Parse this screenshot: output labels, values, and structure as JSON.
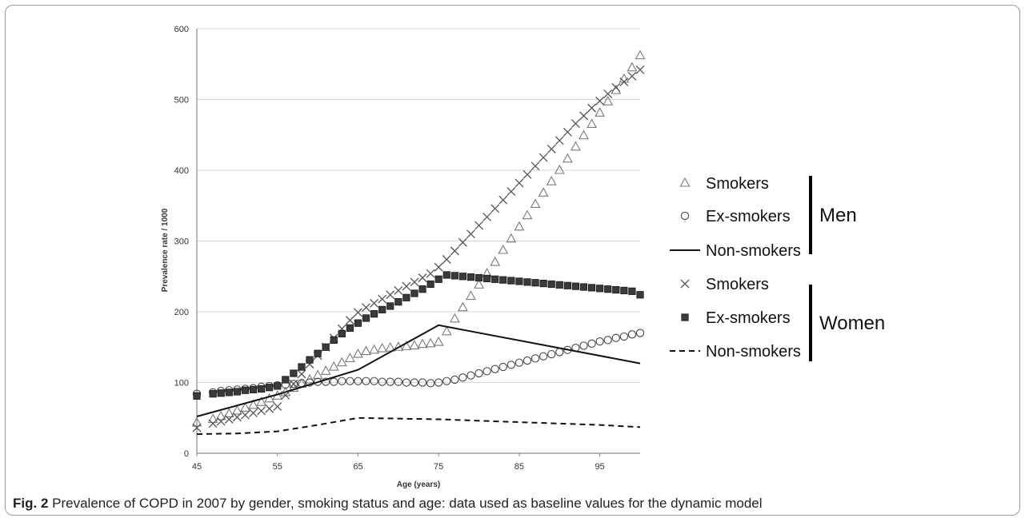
{
  "caption": {
    "label": "Fig. 2",
    "text": "Prevalence of COPD in 2007 by gender, smoking status and age: data used as baseline values for the dynamic model"
  },
  "chart_data": {
    "type": "scatter",
    "xlabel": "Age (years)",
    "ylabel": "Prevalence rate / 1000",
    "xlim": [
      45,
      100
    ],
    "ylim": [
      0,
      600
    ],
    "x_ticks": [
      45,
      55,
      65,
      75,
      85,
      95
    ],
    "y_ticks": [
      0,
      100,
      200,
      300,
      400,
      500,
      600
    ],
    "grid": "horizontal",
    "legend_position": "right",
    "legend_groups": [
      {
        "name": "Men",
        "entries": [
          "Smokers",
          "Ex-smokers",
          "Non-smokers"
        ]
      },
      {
        "name": "Women",
        "entries": [
          "Smokers",
          "Ex-smokers",
          "Non-smokers"
        ]
      }
    ],
    "series": [
      {
        "name": "Smokers",
        "group": "Men",
        "marker": "triangle",
        "color": "#7a7a7a",
        "points": [
          [
            45,
            43
          ],
          [
            47,
            48
          ],
          [
            48,
            52
          ],
          [
            49,
            56
          ],
          [
            50,
            60
          ],
          [
            51,
            64
          ],
          [
            52,
            68
          ],
          [
            53,
            72
          ],
          [
            54,
            77
          ],
          [
            55,
            81
          ],
          [
            56,
            86
          ],
          [
            57,
            92
          ],
          [
            58,
            98
          ],
          [
            59,
            104
          ],
          [
            60,
            110
          ],
          [
            61,
            116
          ],
          [
            62,
            122
          ],
          [
            63,
            128
          ],
          [
            64,
            134
          ],
          [
            65,
            140
          ],
          [
            66,
            144
          ],
          [
            67,
            146
          ],
          [
            68,
            148
          ],
          [
            69,
            149
          ],
          [
            70,
            150
          ],
          [
            71,
            151
          ],
          [
            72,
            152
          ],
          [
            73,
            154
          ],
          [
            74,
            155
          ],
          [
            75,
            157
          ],
          [
            76,
            172
          ],
          [
            77,
            190
          ],
          [
            78,
            206
          ],
          [
            79,
            222
          ],
          [
            80,
            238
          ],
          [
            81,
            254
          ],
          [
            82,
            270
          ],
          [
            83,
            287
          ],
          [
            84,
            303
          ],
          [
            85,
            320
          ],
          [
            86,
            336
          ],
          [
            87,
            352
          ],
          [
            88,
            368
          ],
          [
            89,
            384
          ],
          [
            90,
            400
          ],
          [
            91,
            416
          ],
          [
            92,
            433
          ],
          [
            93,
            449
          ],
          [
            94,
            465
          ],
          [
            95,
            481
          ],
          [
            96,
            497
          ],
          [
            97,
            513
          ],
          [
            98,
            529
          ],
          [
            99,
            545
          ],
          [
            100,
            562
          ]
        ]
      },
      {
        "name": "Ex-smokers",
        "group": "Men",
        "marker": "circle",
        "color": "#444444",
        "points": [
          [
            45,
            84
          ],
          [
            47,
            86
          ],
          [
            48,
            88
          ],
          [
            49,
            89
          ],
          [
            50,
            90
          ],
          [
            51,
            91
          ],
          [
            52,
            92
          ],
          [
            53,
            94
          ],
          [
            54,
            95
          ],
          [
            55,
            96
          ],
          [
            56,
            97
          ],
          [
            57,
            98
          ],
          [
            58,
            99
          ],
          [
            59,
            100
          ],
          [
            60,
            101
          ],
          [
            61,
            101
          ],
          [
            62,
            101
          ],
          [
            63,
            102
          ],
          [
            64,
            102
          ],
          [
            65,
            102
          ],
          [
            66,
            102
          ],
          [
            67,
            102
          ],
          [
            68,
            101
          ],
          [
            69,
            101
          ],
          [
            70,
            101
          ],
          [
            71,
            100
          ],
          [
            72,
            100
          ],
          [
            73,
            100
          ],
          [
            74,
            99
          ],
          [
            75,
            100
          ],
          [
            76,
            102
          ],
          [
            77,
            104
          ],
          [
            78,
            107
          ],
          [
            79,
            110
          ],
          [
            80,
            113
          ],
          [
            81,
            116
          ],
          [
            82,
            119
          ],
          [
            83,
            122
          ],
          [
            84,
            125
          ],
          [
            85,
            128
          ],
          [
            86,
            131
          ],
          [
            87,
            134
          ],
          [
            88,
            137
          ],
          [
            89,
            140
          ],
          [
            90,
            143
          ],
          [
            91,
            146
          ],
          [
            92,
            149
          ],
          [
            93,
            152
          ],
          [
            94,
            155
          ],
          [
            95,
            158
          ],
          [
            96,
            160
          ],
          [
            97,
            163
          ],
          [
            98,
            165
          ],
          [
            99,
            168
          ],
          [
            100,
            170
          ]
        ]
      },
      {
        "name": "Non-smokers",
        "group": "Men",
        "marker": "solid-line",
        "color": "#111111",
        "points": [
          [
            45,
            52
          ],
          [
            55,
            83
          ],
          [
            65,
            118
          ],
          [
            75,
            181
          ],
          [
            100,
            127
          ]
        ]
      },
      {
        "name": "Smokers",
        "group": "Women",
        "marker": "cross",
        "color": "#555555",
        "points": [
          [
            45,
            36
          ],
          [
            47,
            42
          ],
          [
            48,
            45
          ],
          [
            49,
            48
          ],
          [
            50,
            51
          ],
          [
            51,
            54
          ],
          [
            52,
            57
          ],
          [
            53,
            60
          ],
          [
            54,
            63
          ],
          [
            55,
            66
          ],
          [
            56,
            82
          ],
          [
            57,
            98
          ],
          [
            58,
            112
          ],
          [
            59,
            126
          ],
          [
            60,
            138
          ],
          [
            61,
            150
          ],
          [
            62,
            163
          ],
          [
            63,
            176
          ],
          [
            64,
            188
          ],
          [
            65,
            199
          ],
          [
            66,
            206
          ],
          [
            67,
            212
          ],
          [
            68,
            218
          ],
          [
            69,
            224
          ],
          [
            70,
            230
          ],
          [
            71,
            236
          ],
          [
            72,
            242
          ],
          [
            73,
            248
          ],
          [
            74,
            254
          ],
          [
            75,
            263
          ],
          [
            76,
            274
          ],
          [
            77,
            286
          ],
          [
            78,
            298
          ],
          [
            79,
            310
          ],
          [
            80,
            322
          ],
          [
            81,
            334
          ],
          [
            82,
            346
          ],
          [
            83,
            358
          ],
          [
            84,
            370
          ],
          [
            85,
            382
          ],
          [
            86,
            394
          ],
          [
            87,
            406
          ],
          [
            88,
            418
          ],
          [
            89,
            430
          ],
          [
            90,
            442
          ],
          [
            91,
            454
          ],
          [
            92,
            466
          ],
          [
            93,
            477
          ],
          [
            94,
            488
          ],
          [
            95,
            498
          ],
          [
            96,
            508
          ],
          [
            97,
            517
          ],
          [
            98,
            525
          ],
          [
            99,
            533
          ],
          [
            100,
            542
          ]
        ]
      },
      {
        "name": "Ex-smokers",
        "group": "Women",
        "marker": "square",
        "color": "#3a3a3a",
        "points": [
          [
            45,
            81
          ],
          [
            47,
            84
          ],
          [
            48,
            85
          ],
          [
            49,
            86
          ],
          [
            50,
            87
          ],
          [
            51,
            89
          ],
          [
            52,
            90
          ],
          [
            53,
            91
          ],
          [
            54,
            93
          ],
          [
            55,
            95
          ],
          [
            56,
            104
          ],
          [
            57,
            113
          ],
          [
            58,
            122
          ],
          [
            59,
            132
          ],
          [
            60,
            141
          ],
          [
            61,
            150
          ],
          [
            62,
            160
          ],
          [
            63,
            169
          ],
          [
            64,
            177
          ],
          [
            65,
            184
          ],
          [
            66,
            191
          ],
          [
            67,
            197
          ],
          [
            68,
            203
          ],
          [
            69,
            208
          ],
          [
            70,
            214
          ],
          [
            71,
            220
          ],
          [
            72,
            226
          ],
          [
            73,
            232
          ],
          [
            74,
            239
          ],
          [
            75,
            246
          ],
          [
            76,
            252
          ],
          [
            77,
            251
          ],
          [
            78,
            250
          ],
          [
            79,
            249
          ],
          [
            80,
            248
          ],
          [
            81,
            247
          ],
          [
            82,
            246
          ],
          [
            83,
            245
          ],
          [
            84,
            244
          ],
          [
            85,
            243
          ],
          [
            86,
            242
          ],
          [
            87,
            241
          ],
          [
            88,
            240
          ],
          [
            89,
            239
          ],
          [
            90,
            238
          ],
          [
            91,
            237
          ],
          [
            92,
            236
          ],
          [
            93,
            235
          ],
          [
            94,
            234
          ],
          [
            95,
            233
          ],
          [
            96,
            232
          ],
          [
            97,
            231
          ],
          [
            98,
            230
          ],
          [
            99,
            229
          ],
          [
            100,
            224
          ]
        ]
      },
      {
        "name": "Non-smokers",
        "group": "Women",
        "marker": "dashed-line",
        "color": "#111111",
        "points": [
          [
            45,
            27
          ],
          [
            50,
            28
          ],
          [
            55,
            31
          ],
          [
            60,
            40
          ],
          [
            65,
            50
          ],
          [
            75,
            48
          ],
          [
            85,
            44
          ],
          [
            95,
            40
          ],
          [
            100,
            37
          ]
        ]
      }
    ]
  }
}
